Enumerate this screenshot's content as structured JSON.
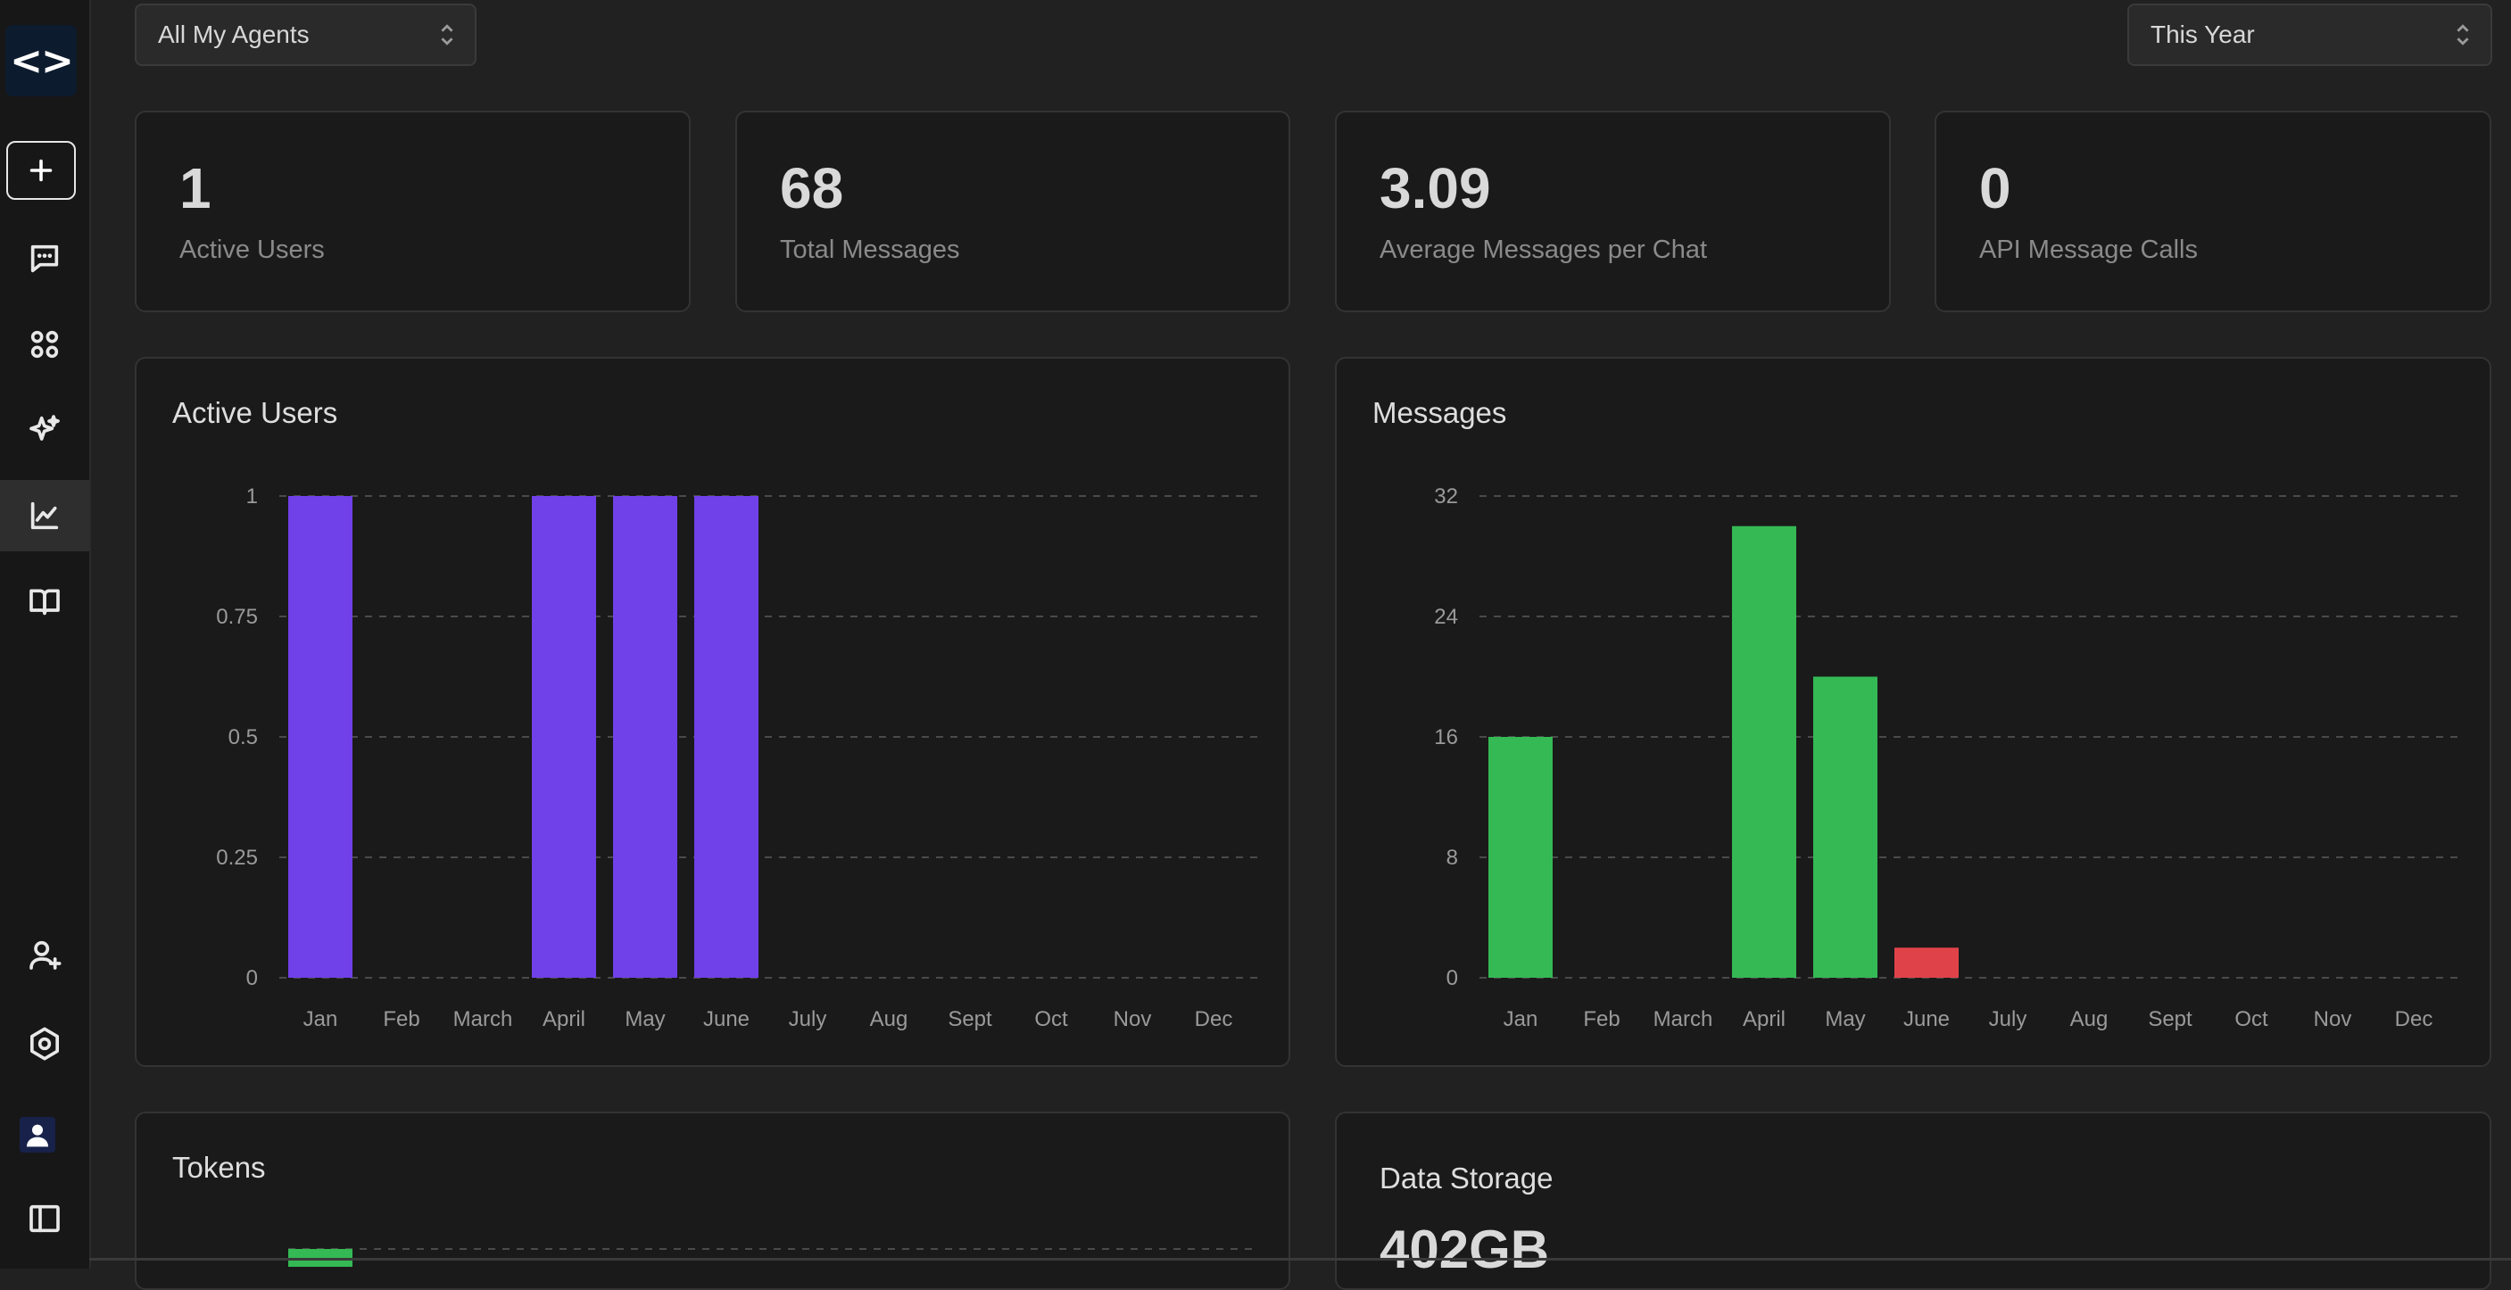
{
  "sidebar": {
    "logo": "<>",
    "items": [
      {
        "name": "new",
        "icon": "plus-icon"
      },
      {
        "name": "chats",
        "icon": "chat-icon"
      },
      {
        "name": "apps",
        "icon": "grid-icon"
      },
      {
        "name": "agents",
        "icon": "sparkles-icon"
      },
      {
        "name": "analytics",
        "icon": "chart-icon",
        "active": true
      },
      {
        "name": "library",
        "icon": "book-icon"
      },
      {
        "name": "invite",
        "icon": "user-plus-icon"
      },
      {
        "name": "settings",
        "icon": "settings-icon"
      },
      {
        "name": "profile",
        "icon": "avatar-icon"
      },
      {
        "name": "toggle-sidebar",
        "icon": "sidebar-icon"
      }
    ]
  },
  "filters": {
    "agent_select": "All My Agents",
    "period_select": "This Year"
  },
  "stats": [
    {
      "value": "1",
      "label": "Active Users"
    },
    {
      "value": "68",
      "label": "Total Messages"
    },
    {
      "value": "3.09",
      "label": "Average Messages per Chat"
    },
    {
      "value": "0",
      "label": "API Message Calls"
    }
  ],
  "panels": {
    "active_users_title": "Active Users",
    "messages_title": "Messages",
    "tokens_title": "Tokens",
    "storage_title": "Data Storage",
    "storage_value": "402GB"
  },
  "colors": {
    "purple": "#7040e8",
    "green": "#34b955",
    "red": "#e0424a"
  },
  "chart_data": [
    {
      "type": "bar",
      "title": "Active Users",
      "categories": [
        "Jan",
        "Feb",
        "March",
        "April",
        "May",
        "June",
        "July",
        "Aug",
        "Sept",
        "Oct",
        "Nov",
        "Dec"
      ],
      "values": [
        1,
        0,
        0,
        1,
        1,
        1,
        0,
        0,
        0,
        0,
        0,
        0
      ],
      "colors": [
        "#7040e8",
        "#7040e8",
        "#7040e8",
        "#7040e8",
        "#7040e8",
        "#7040e8",
        "#7040e8",
        "#7040e8",
        "#7040e8",
        "#7040e8",
        "#7040e8",
        "#7040e8"
      ],
      "yticks": [
        "1",
        "0.75",
        "0.5",
        "0.25",
        "0"
      ],
      "ylim": [
        0,
        1
      ],
      "grid": true
    },
    {
      "type": "bar",
      "title": "Messages",
      "categories": [
        "Jan",
        "Feb",
        "March",
        "April",
        "May",
        "June",
        "July",
        "Aug",
        "Sept",
        "Oct",
        "Nov",
        "Dec"
      ],
      "values": [
        16,
        0,
        0,
        30,
        20,
        2,
        0,
        0,
        0,
        0,
        0,
        0
      ],
      "colors": [
        "#34b955",
        "#34b955",
        "#34b955",
        "#34b955",
        "#34b955",
        "#e0424a",
        "#34b955",
        "#34b955",
        "#34b955",
        "#34b955",
        "#34b955",
        "#34b955"
      ],
      "yticks": [
        "32",
        "24",
        "16",
        "8",
        "0"
      ],
      "ylim": [
        0,
        32
      ],
      "grid": true
    }
  ]
}
